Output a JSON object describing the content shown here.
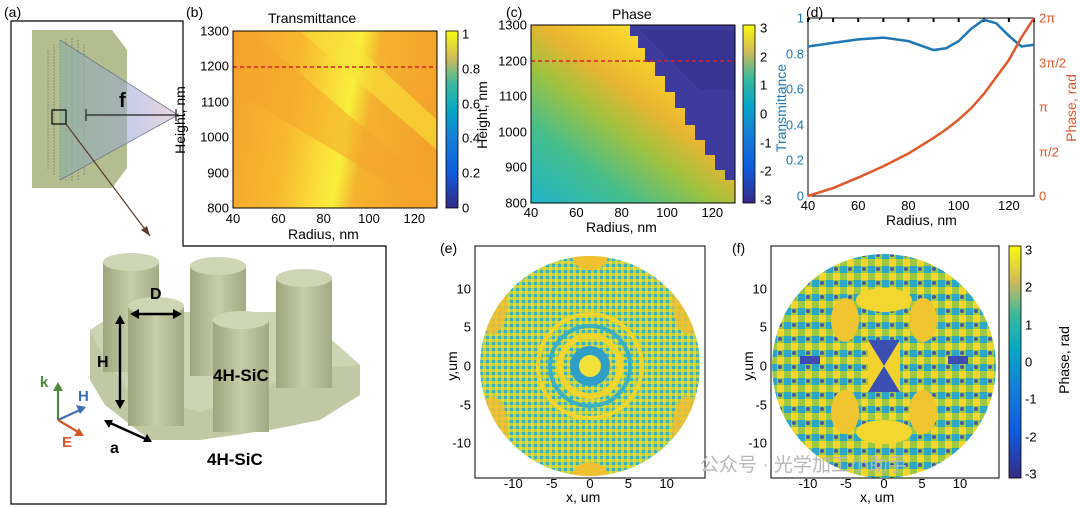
{
  "panels": {
    "a": {
      "label": "(a)",
      "focal_label": "f",
      "dim_D": "D",
      "dim_H": "H",
      "dim_a": "a",
      "mat_top": "4H-SiC",
      "mat_bottom": "4H-SiC",
      "axis_k": "k",
      "axis_H": "H",
      "axis_E": "E",
      "colors": {
        "k": "#4a8a3a",
        "H": "#3a6fb0",
        "E": "#d0582a",
        "pillar": "#b9c39c"
      }
    },
    "b": {
      "label": "(b)",
      "title": "Transmittance",
      "xlabel": "Radius, nm",
      "ylabel": "Height, nm",
      "xticks": [
        "40",
        "60",
        "80",
        "100",
        "120"
      ],
      "yticks": [
        "800",
        "900",
        "1000",
        "1100",
        "1200",
        "1300"
      ],
      "cticks": [
        "0",
        "0.2",
        "0.4",
        "0.6",
        "0.8",
        "1"
      ]
    },
    "c": {
      "label": "(c)",
      "title": "Phase",
      "xlabel": "Radius, nm",
      "ylabel": "Height, nm",
      "xticks": [
        "40",
        "60",
        "80",
        "100",
        "120"
      ],
      "yticks": [
        "800",
        "900",
        "1000",
        "1100",
        "1200",
        "1300"
      ],
      "cticks": [
        "-3",
        "-2",
        "-1",
        "0",
        "1",
        "2",
        "3"
      ]
    },
    "d": {
      "label": "(d)",
      "xlabel": "Radius, nm",
      "ylabel_left": "Transmittance",
      "ylabel_right": "Phase, rad",
      "xticks": [
        "40",
        "60",
        "80",
        "100",
        "120"
      ],
      "yticks_left": [
        "0",
        "0.2",
        "0.4",
        "0.6",
        "0.8",
        "1"
      ],
      "yticks_right": [
        "0",
        "π/2",
        "π",
        "3π/2",
        "2π"
      ],
      "colors": {
        "left": "#1f77b4",
        "right": "#e0592a"
      }
    },
    "e": {
      "label": "(e)",
      "xlabel": "x, um",
      "ylabel": "y,um",
      "xticks": [
        "-10",
        "-5",
        "0",
        "5",
        "10"
      ],
      "yticks": [
        "10",
        "5",
        "0",
        "-5",
        "-10"
      ]
    },
    "f": {
      "label": "(f)",
      "xlabel": "x, um",
      "ylabel": "y,um",
      "clabel": "Phase, rad",
      "xticks": [
        "-10",
        "-5",
        "0",
        "5",
        "10"
      ],
      "yticks": [
        "10",
        "5",
        "0",
        "-5",
        "-10"
      ],
      "cticks": [
        "3",
        "2",
        "1",
        "0",
        "-1",
        "-2",
        "-3"
      ]
    }
  },
  "watermark": "公众号 · 光学加工小助手",
  "chart_data": [
    {
      "type": "heatmap",
      "title": "Transmittance",
      "xlabel": "Radius, nm",
      "ylabel": "Height, nm",
      "xlim": [
        40,
        130
      ],
      "ylim": [
        800,
        1300
      ],
      "clim": [
        0,
        1
      ],
      "grid": false,
      "annotation": "dashed red line at height 1200 nm"
    },
    {
      "type": "heatmap",
      "title": "Phase",
      "xlabel": "Radius, nm",
      "ylabel": "Height, nm",
      "xlim": [
        40,
        130
      ],
      "ylim": [
        800,
        1300
      ],
      "clim": [
        -3,
        3
      ],
      "grid": false,
      "annotation": "dashed red line at height 1200 nm"
    },
    {
      "type": "line",
      "xlabel": "Radius, nm",
      "ylabel": "Transmittance",
      "y2label": "Phase, rad",
      "xlim": [
        40,
        130
      ],
      "ylim": [
        0,
        1
      ],
      "y2lim": [
        0,
        6.2832
      ],
      "grid": false,
      "x": [
        40,
        50,
        60,
        70,
        80,
        90,
        95,
        100,
        105,
        110,
        115,
        120,
        125,
        130
      ],
      "series": [
        {
          "axis": "left",
          "values": [
            0.84,
            0.86,
            0.88,
            0.89,
            0.87,
            0.82,
            0.83,
            0.87,
            0.94,
            0.99,
            0.97,
            0.9,
            0.84,
            0.85
          ]
        },
        {
          "axis": "right",
          "values": [
            0.0,
            0.28,
            0.65,
            1.05,
            1.5,
            2.05,
            2.35,
            2.7,
            3.1,
            3.6,
            4.2,
            4.8,
            5.6,
            6.28
          ]
        }
      ]
    },
    {
      "type": "heatmap",
      "xlabel": "x, um",
      "ylabel": "y,um",
      "xlim": [
        -15,
        15
      ],
      "ylim": [
        -15,
        15
      ]
    },
    {
      "type": "heatmap",
      "xlabel": "x, um",
      "ylabel": "y,um",
      "xlim": [
        -15,
        15
      ],
      "ylim": [
        -15,
        15
      ],
      "clim": [
        -3,
        3
      ],
      "clabel": "Phase, rad"
    }
  ]
}
